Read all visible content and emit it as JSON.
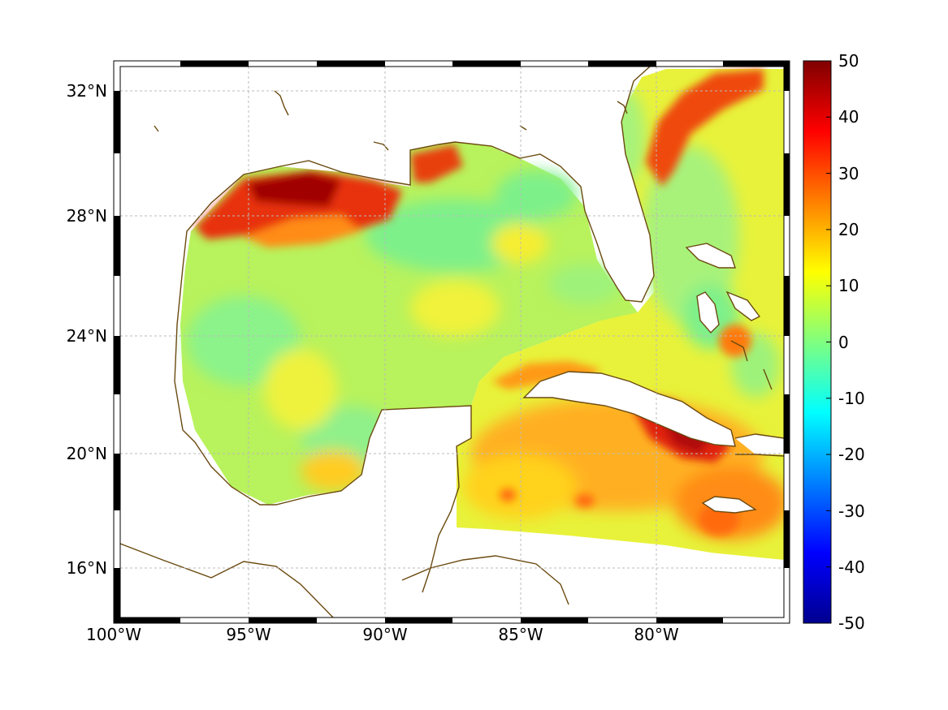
{
  "map": {
    "lat_labels": [
      "32°N",
      "28°N",
      "24°N",
      "20°N",
      "16°N"
    ],
    "lat_values": [
      32,
      28,
      24,
      20,
      16
    ],
    "lon_labels": [
      "100°W",
      "95°W",
      "90°W",
      "85°W",
      "80°W"
    ],
    "lon_values": [
      -100,
      -95,
      -90,
      -85,
      -80
    ],
    "lon_range": [
      -100,
      -75.2
    ],
    "lat_range": [
      14.2,
      33
    ],
    "coastline_color": "#6b4a10",
    "grid": true
  },
  "colorbar": {
    "ticks": [
      "50",
      "40",
      "30",
      "20",
      "10",
      "0",
      "-10",
      "-20",
      "-30",
      "-40",
      "-50"
    ],
    "range": [
      -50,
      50
    ],
    "colormap": "jet"
  }
}
